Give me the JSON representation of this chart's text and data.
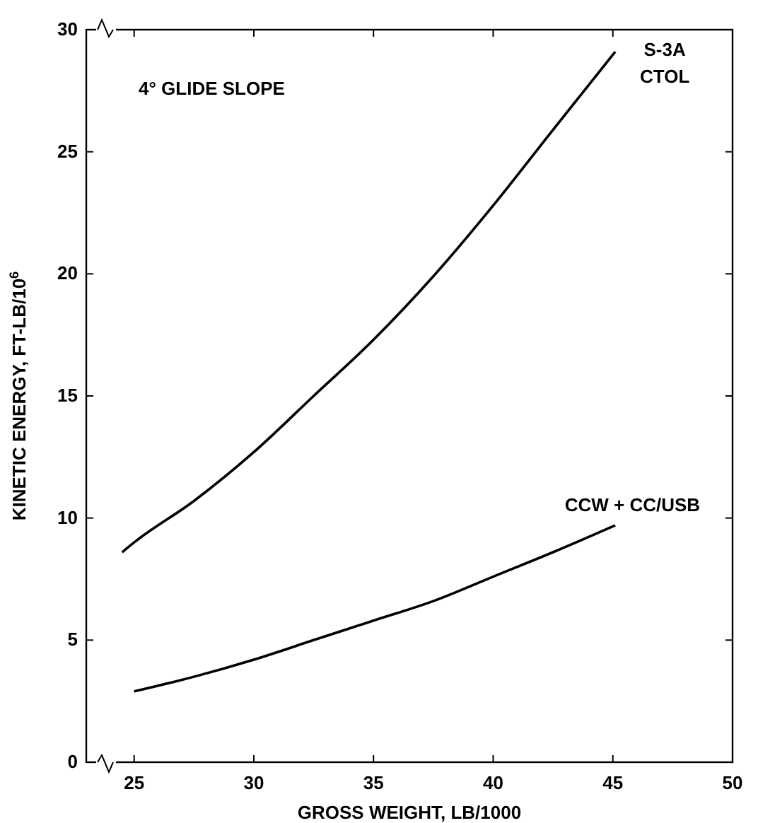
{
  "chart_data": {
    "type": "line",
    "xlabel": "GROSS WEIGHT, LB/1000",
    "ylabel": "KINETIC ENERGY, FT-LB/10$^{6}$",
    "annotations": [
      "4° GLIDE SLOPE"
    ],
    "xlim": [
      23,
      50
    ],
    "ylim": [
      0,
      30
    ],
    "xticks": [
      25,
      30,
      35,
      40,
      45,
      50
    ],
    "yticks": [
      0,
      5,
      10,
      15,
      20,
      25,
      30
    ],
    "grid": false,
    "legend": false,
    "marker": "none",
    "line_style": "solid",
    "series": [
      {
        "name": "S-3A CTOL",
        "color": "#000000",
        "x": [
          24.5,
          25,
          27.5,
          30,
          32.5,
          35,
          37.5,
          40,
          42.5,
          45.1
        ],
        "values": [
          8.6,
          9.0,
          10.7,
          12.7,
          15.0,
          17.3,
          19.9,
          22.8,
          25.9,
          29.1
        ]
      },
      {
        "name": "CCW + CC/USB",
        "color": "#000000",
        "x": [
          25,
          27.5,
          30,
          32.5,
          35,
          37.5,
          40,
          42.5,
          45.1
        ],
        "values": [
          2.9,
          3.5,
          4.2,
          5.0,
          5.8,
          6.6,
          7.6,
          8.6,
          9.7
        ]
      }
    ]
  }
}
